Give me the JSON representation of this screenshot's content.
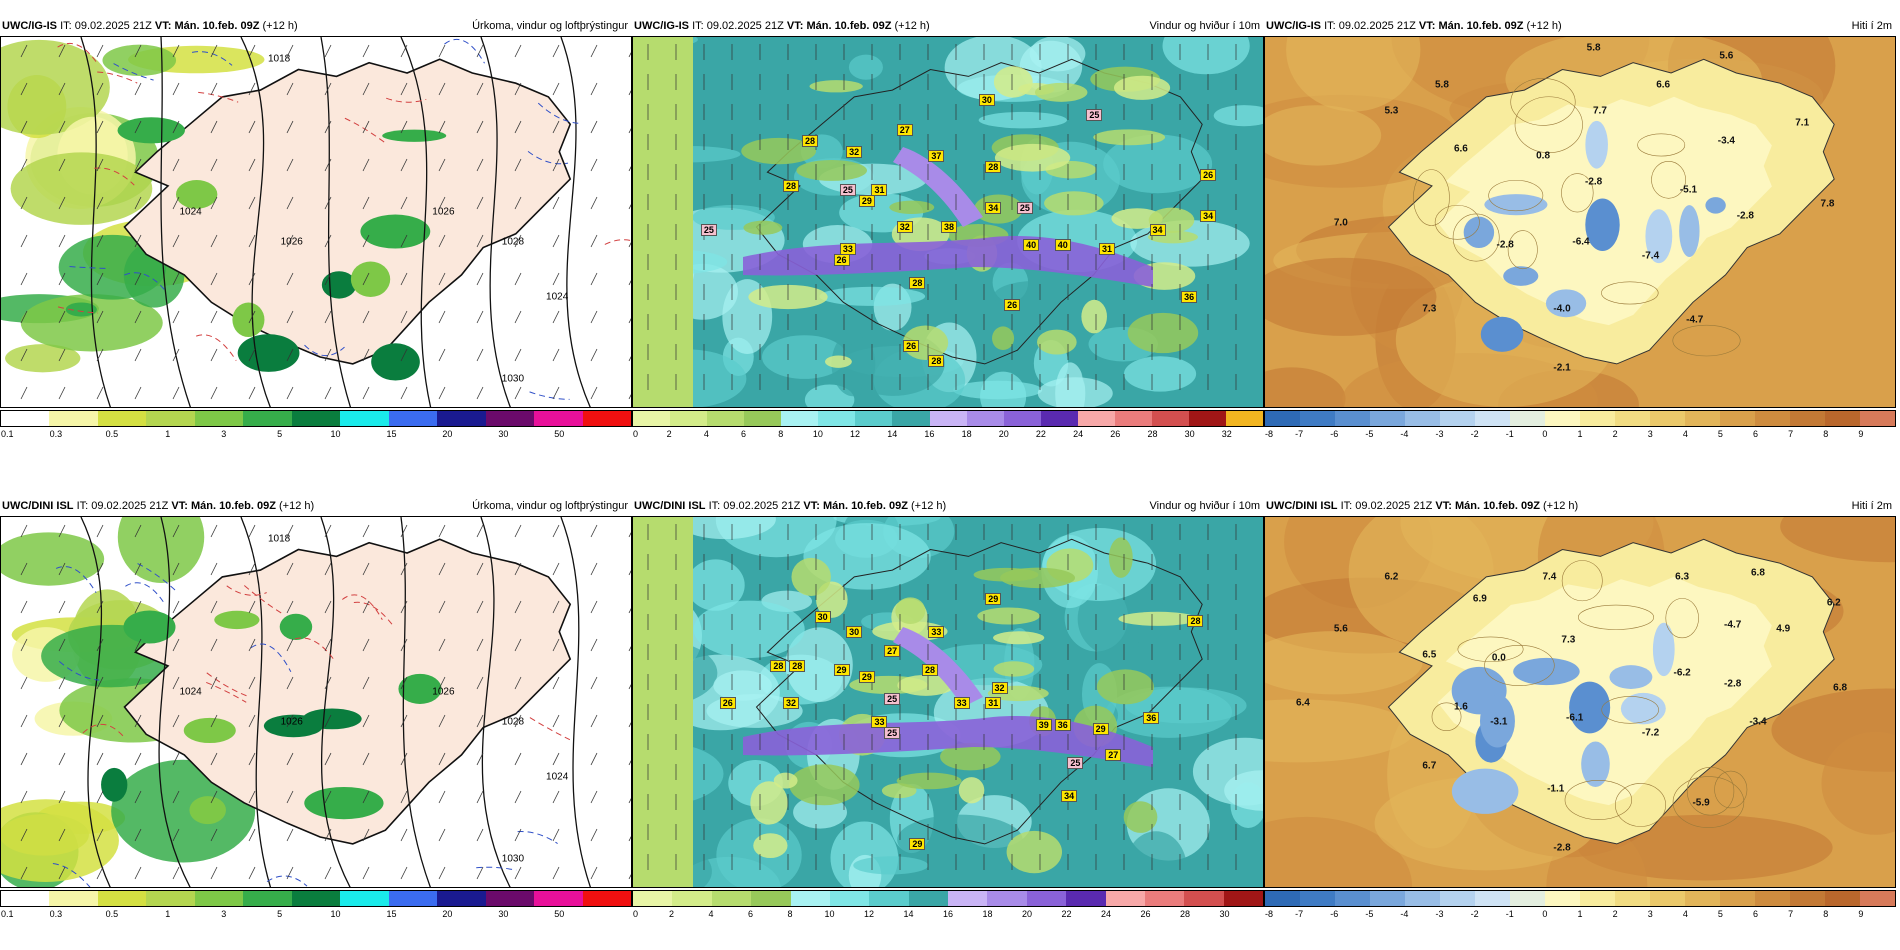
{
  "panels": [
    {
      "id": "ig-precip",
      "model": "UWC/IG-IS",
      "it_label": "IT:",
      "it_value": "09.02.2025 21Z",
      "vt_label": "VT:",
      "vt_value": "Mán. 10.feb. 09Z",
      "lead": "(+12 h)",
      "field_title": "Úrkoma, vindur og loftþrýstingur",
      "colorbar": {
        "ticks": [
          "0.1",
          "0.3",
          "0.5",
          "1",
          "3",
          "5",
          "10",
          "15",
          "20",
          "30",
          "50"
        ],
        "colors": [
          "#ffffff",
          "#f6f6a8",
          "#d4e042",
          "#b4d650",
          "#7ec847",
          "#36ad4a",
          "#0a7d3e",
          "#1aeaea",
          "#3b6cf0",
          "#1a1a90",
          "#6b0a6b",
          "#e8109a",
          "#f01010"
        ]
      },
      "isobar_labels": [
        "1018",
        "1024",
        "1026",
        "1026",
        "1028",
        "1030",
        "1024"
      ]
    },
    {
      "id": "ig-wind",
      "model": "UWC/IG-IS",
      "it_label": "IT:",
      "it_value": "09.02.2025 21Z",
      "vt_label": "VT:",
      "vt_value": "Mán. 10.feb. 09Z",
      "lead": "(+12 h)",
      "field_title": "Vindur og hviður í 10m",
      "colorbar": {
        "ticks": [
          "0",
          "2",
          "4",
          "6",
          "8",
          "10",
          "12",
          "14",
          "16",
          "18",
          "20",
          "22",
          "24",
          "26",
          "28",
          "30",
          "32"
        ],
        "colors": [
          "#e8f5a6",
          "#d3ec89",
          "#b6dc6e",
          "#97c95a",
          "#a8f2f2",
          "#7fe6e6",
          "#5bcccc",
          "#3aa6a6",
          "#c9b4f5",
          "#a88be8",
          "#8a62d8",
          "#5a2ab0",
          "#f7a8a8",
          "#ea7c7c",
          "#d34f4f",
          "#a01616",
          "#f2b520"
        ]
      },
      "gusts": [
        "30",
        "25",
        "27",
        "28",
        "32",
        "37",
        "28",
        "31",
        "25",
        "28",
        "26",
        "34",
        "38",
        "40",
        "40",
        "32",
        "25",
        "31",
        "34",
        "33",
        "26",
        "26",
        "28",
        "29",
        "36",
        "26",
        "28",
        "34",
        "25"
      ]
    },
    {
      "id": "ig-temp",
      "model": "UWC/IG-IS",
      "it_label": "IT:",
      "it_value": "09.02.2025 21Z",
      "vt_label": "VT:",
      "vt_value": "Mán. 10.feb. 09Z",
      "lead": "(+12 h)",
      "field_title": "Hiti í 2m",
      "colorbar": {
        "ticks": [
          "-8",
          "-7",
          "-6",
          "-5",
          "-4",
          "-3",
          "-2",
          "-1",
          "0",
          "1",
          "2",
          "3",
          "4",
          "5",
          "6",
          "7",
          "8",
          "9"
        ],
        "colors": [
          "#2e6ab5",
          "#3f7bc4",
          "#5a8fd0",
          "#7aa7dc",
          "#98bde6",
          "#b4d2ef",
          "#cfe3f5",
          "#e4efe0",
          "#fdf7c0",
          "#f8ec9e",
          "#f1dc82",
          "#ebc96b",
          "#e2b55a",
          "#d9a04b",
          "#ce8c3f",
          "#c37935",
          "#b9672c",
          "#d77a5a"
        ]
      },
      "temps": [
        "5.8",
        "5.6",
        "5.8",
        "6.6",
        "5.3",
        "7.7",
        "7.1",
        "6.6",
        "0.8",
        "-3.4",
        "-2.8",
        "-5.1",
        "7.0",
        "-2.8",
        "7.8",
        "-2.8",
        "-6.4",
        "-7.4",
        "7.3",
        "-4.0",
        "-4.7",
        "-2.1"
      ]
    },
    {
      "id": "dini-precip",
      "model": "UWC/DINI ISL",
      "it_label": "IT:",
      "it_value": "09.02.2025 21Z",
      "vt_label": "VT:",
      "vt_value": "Mán. 10.feb. 09Z",
      "lead": "(+12 h)",
      "field_title": "Úrkoma, vindur og loftþrýstingur",
      "colorbar": {
        "ticks": [
          "0.1",
          "0.3",
          "0.5",
          "1",
          "3",
          "5",
          "10",
          "15",
          "20",
          "30",
          "50"
        ],
        "colors": [
          "#ffffff",
          "#f6f6a8",
          "#d4e042",
          "#b4d650",
          "#7ec847",
          "#36ad4a",
          "#0a7d3e",
          "#1aeaea",
          "#3b6cf0",
          "#1a1a90",
          "#6b0a6b",
          "#e8109a",
          "#f01010"
        ]
      },
      "isobar_labels": [
        "1018",
        "1024",
        "1026",
        "1026",
        "1028",
        "1030",
        "1024"
      ]
    },
    {
      "id": "dini-wind",
      "model": "UWC/DINI ISL",
      "it_label": "IT:",
      "it_value": "09.02.2025 21Z",
      "vt_label": "VT:",
      "vt_value": "Mán. 10.feb. 09Z",
      "lead": "(+12 h)",
      "field_title": "Vindur og hviður í 10m",
      "colorbar": {
        "ticks": [
          "0",
          "2",
          "4",
          "6",
          "8",
          "10",
          "12",
          "14",
          "16",
          "18",
          "20",
          "22",
          "24",
          "26",
          "28",
          "30"
        ],
        "colors": [
          "#e8f5a6",
          "#d3ec89",
          "#b6dc6e",
          "#97c95a",
          "#a8f2f2",
          "#7fe6e6",
          "#5bcccc",
          "#3aa6a6",
          "#c9b4f5",
          "#a88be8",
          "#8a62d8",
          "#5a2ab0",
          "#f7a8a8",
          "#ea7c7c",
          "#d34f4f",
          "#a01616"
        ]
      },
      "gusts": [
        "29",
        "30",
        "30",
        "28",
        "33",
        "27",
        "28",
        "29",
        "29",
        "28",
        "32",
        "25",
        "33",
        "25",
        "33",
        "31",
        "39",
        "36",
        "29",
        "36",
        "25",
        "27",
        "34",
        "29",
        "28",
        "26",
        "32"
      ]
    },
    {
      "id": "dini-temp",
      "model": "UWC/DINI ISL",
      "it_label": "IT:",
      "it_value": "09.02.2025 21Z",
      "vt_label": "VT:",
      "vt_value": "Mán. 10.feb. 09Z",
      "lead": "(+12 h)",
      "field_title": "Hiti í 2m",
      "colorbar": {
        "ticks": [
          "-8",
          "-7",
          "-6",
          "-5",
          "-4",
          "-3",
          "-2",
          "-1",
          "0",
          "1",
          "2",
          "3",
          "4",
          "5",
          "6",
          "7",
          "8",
          "9"
        ],
        "colors": [
          "#2e6ab5",
          "#3f7bc4",
          "#5a8fd0",
          "#7aa7dc",
          "#98bde6",
          "#b4d2ef",
          "#cfe3f5",
          "#e4efe0",
          "#fdf7c0",
          "#f8ec9e",
          "#f1dc82",
          "#ebc96b",
          "#e2b55a",
          "#d9a04b",
          "#ce8c3f",
          "#c37935",
          "#b9672c",
          "#d77a5a"
        ]
      },
      "temps": [
        "6.2",
        "7.4",
        "6.3",
        "6.8",
        "6.2",
        "6.9",
        "5.6",
        "-4.7",
        "4.9",
        "7.3",
        "6.5",
        "0.0",
        "-6.2",
        "-2.8",
        "6.8",
        "1.6",
        "-3.1",
        "-6.1",
        "-7.2",
        "-3.4",
        "6.4",
        "6.7",
        "-1.1",
        "-5.9",
        "-2.8"
      ]
    }
  ],
  "colors": {
    "land_precip": "#fbe8dc",
    "sea_wind": "#3aa6a6",
    "warm": "#e2b55a",
    "cold": "#5a8fd0"
  }
}
